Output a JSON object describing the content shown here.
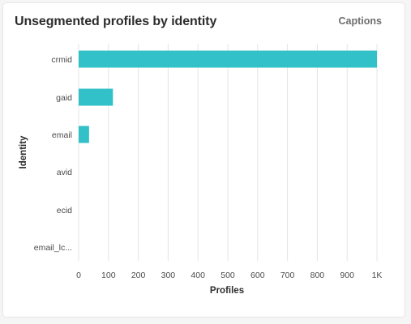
{
  "card": {
    "title": "Unsegmented profiles by identity",
    "captions_label": "Captions"
  },
  "chart_data": {
    "type": "bar",
    "orientation": "horizontal",
    "categories": [
      "crmid",
      "gaid",
      "email",
      "avid",
      "ecid",
      "email_lc..."
    ],
    "values": [
      1000,
      115,
      35,
      0,
      0,
      0
    ],
    "xlabel": "Profiles",
    "ylabel": "Identity",
    "xlim": [
      0,
      1000
    ],
    "x_ticks": [
      0,
      100,
      200,
      300,
      400,
      500,
      600,
      700,
      800,
      900,
      1000
    ],
    "x_tick_labels": [
      "0",
      "100",
      "200",
      "300",
      "400",
      "500",
      "600",
      "700",
      "800",
      "900",
      "1K"
    ],
    "grid": "vertical",
    "bar_color": "#33c1c9"
  }
}
